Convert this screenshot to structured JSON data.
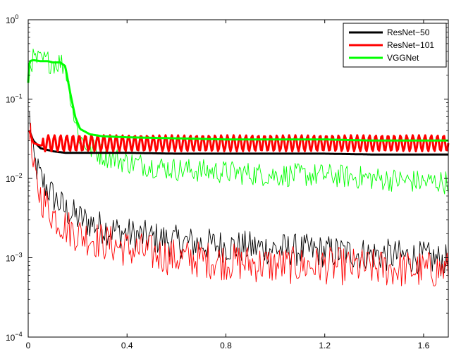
{
  "chart_data": {
    "type": "line",
    "title": "",
    "xlabel": "",
    "ylabel": "",
    "xlim": [
      0,
      1.7
    ],
    "ylim": [
      0.0001,
      1
    ],
    "yscale": "log",
    "grid": false,
    "legend_position": "top-right",
    "x_ticks": [
      {
        "value": 0,
        "label": "0"
      },
      {
        "value": 0.4,
        "label": "0.4"
      },
      {
        "value": 0.8,
        "label": "0.8"
      },
      {
        "value": 1.2,
        "label": "1.2"
      },
      {
        "value": 1.6,
        "label": "1.6"
      }
    ],
    "y_ticks": [
      {
        "value": 0.0001,
        "base": "10",
        "exp": "−4"
      },
      {
        "value": 0.001,
        "base": "10",
        "exp": "−3"
      },
      {
        "value": 0.01,
        "base": "10",
        "exp": "−2"
      },
      {
        "value": 0.1,
        "base": "10",
        "exp": "−1"
      },
      {
        "value": 1,
        "base": "10",
        "exp": "0"
      }
    ],
    "series": [
      {
        "name": "ResNet−50",
        "legend": true,
        "color": "#000000",
        "line_width": "thick",
        "x": [
          0.005,
          0.02,
          0.05,
          0.1,
          0.15,
          0.2,
          0.25,
          0.3,
          0.4,
          0.6,
          0.8,
          1.0,
          1.2,
          1.4,
          1.6,
          1.7
        ],
        "y": [
          0.04,
          0.03,
          0.024,
          0.022,
          0.021,
          0.021,
          0.021,
          0.021,
          0.021,
          0.0205,
          0.0205,
          0.0205,
          0.0205,
          0.02,
          0.02,
          0.02
        ]
      },
      {
        "name": "ResNet−101",
        "legend": true,
        "color": "#ff0000",
        "line_width": "thick",
        "oscillation": {
          "low": 0.022,
          "high": 0.035,
          "period": 0.025
        },
        "x": [
          0.005,
          0.02,
          0.05,
          0.1,
          0.2,
          0.4,
          0.6,
          0.8,
          1.0,
          1.2,
          1.4,
          1.6,
          1.7
        ],
        "y": [
          0.04,
          0.028,
          0.026,
          0.027,
          0.028,
          0.028,
          0.028,
          0.028,
          0.028,
          0.028,
          0.028,
          0.028,
          0.028
        ]
      },
      {
        "name": "VGGNet",
        "legend": true,
        "color": "#00ff00",
        "line_width": "thick",
        "x": [
          0.0,
          0.005,
          0.02,
          0.05,
          0.08,
          0.1,
          0.13,
          0.15,
          0.17,
          0.19,
          0.21,
          0.25,
          0.3,
          0.4,
          0.6,
          0.8,
          1.0,
          1.2,
          1.4,
          1.6,
          1.7
        ],
        "y": [
          0.16,
          0.3,
          0.31,
          0.3,
          0.3,
          0.29,
          0.29,
          0.26,
          0.12,
          0.06,
          0.042,
          0.036,
          0.034,
          0.033,
          0.032,
          0.031,
          0.031,
          0.031,
          0.03,
          0.03,
          0.03
        ]
      },
      {
        "name": "ResNet−50 (thin)",
        "legend": false,
        "color": "#000000",
        "line_width": "thin",
        "noise": 0.35,
        "x": [
          0.005,
          0.02,
          0.05,
          0.1,
          0.15,
          0.2,
          0.3,
          0.4,
          0.6,
          0.8,
          1.0,
          1.2,
          1.4,
          1.6,
          1.7
        ],
        "y": [
          0.06,
          0.018,
          0.01,
          0.006,
          0.004,
          0.0032,
          0.0024,
          0.002,
          0.0016,
          0.0014,
          0.0013,
          0.0012,
          0.0011,
          0.001,
          0.0009
        ]
      },
      {
        "name": "ResNet−101 (thin)",
        "legend": false,
        "color": "#ff0000",
        "line_width": "thin",
        "noise": 0.4,
        "x": [
          0.005,
          0.02,
          0.05,
          0.1,
          0.15,
          0.2,
          0.3,
          0.4,
          0.6,
          0.8,
          1.0,
          1.2,
          1.4,
          1.6,
          1.7
        ],
        "y": [
          0.05,
          0.012,
          0.006,
          0.0035,
          0.0025,
          0.002,
          0.0016,
          0.0013,
          0.001,
          0.0009,
          0.0008,
          0.0008,
          0.00075,
          0.0007,
          0.0007
        ]
      },
      {
        "name": "VGGNet (thin)",
        "legend": false,
        "color": "#00ff00",
        "line_width": "thin",
        "noise": 0.25,
        "x": [
          0.0,
          0.005,
          0.02,
          0.05,
          0.08,
          0.1,
          0.13,
          0.15,
          0.17,
          0.19,
          0.21,
          0.25,
          0.3,
          0.4,
          0.6,
          0.8,
          1.0,
          1.2,
          1.4,
          1.6,
          1.7
        ],
        "y": [
          0.16,
          0.3,
          0.31,
          0.3,
          0.3,
          0.29,
          0.29,
          0.26,
          0.12,
          0.05,
          0.032,
          0.024,
          0.02,
          0.016,
          0.013,
          0.012,
          0.011,
          0.011,
          0.01,
          0.009,
          0.009
        ]
      }
    ]
  }
}
